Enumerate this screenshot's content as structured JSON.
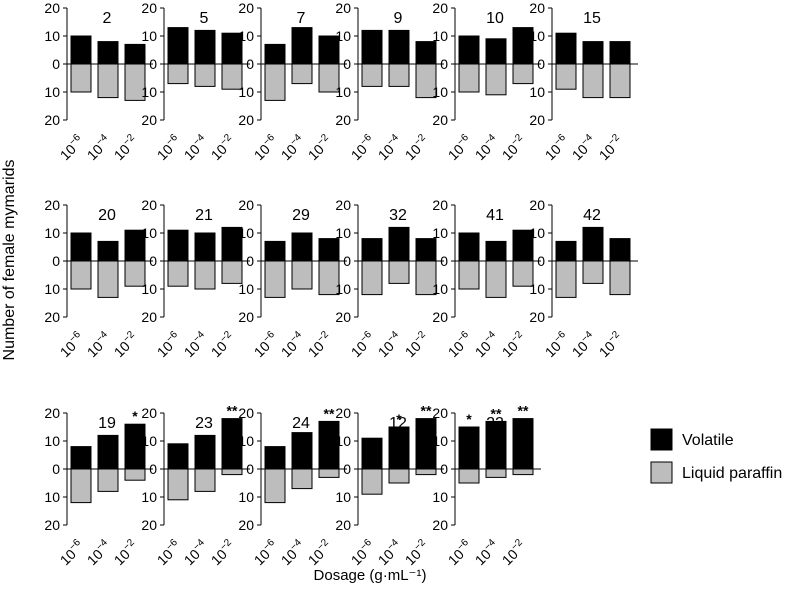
{
  "chart_data": {
    "type": "bar",
    "ylabel": "Number of female mymarids",
    "xlabel": "Dosage (g·mL⁻¹)",
    "ylim": [
      -20,
      20
    ],
    "yticks": [
      "20",
      "10",
      "0",
      "10",
      "20"
    ],
    "categories": [
      {
        "base": "10",
        "exp": "−6"
      },
      {
        "base": "10",
        "exp": "−4"
      },
      {
        "base": "10",
        "exp": "−2"
      }
    ],
    "legend": {
      "position": "right",
      "items": [
        {
          "label": "Volatile",
          "color": "#000000"
        },
        {
          "label": "Liquid paraffin",
          "color": "#bdbdbe"
        }
      ]
    },
    "panels": [
      {
        "title": "2",
        "volatile": [
          10,
          8,
          7
        ],
        "paraffin": [
          10,
          12,
          13
        ],
        "sig": [
          "",
          "",
          ""
        ]
      },
      {
        "title": "5",
        "volatile": [
          13,
          12,
          11
        ],
        "paraffin": [
          7,
          8,
          9
        ],
        "sig": [
          "",
          "",
          ""
        ]
      },
      {
        "title": "7",
        "volatile": [
          7,
          13,
          10
        ],
        "paraffin": [
          13,
          7,
          10
        ],
        "sig": [
          "",
          "",
          ""
        ]
      },
      {
        "title": "9",
        "volatile": [
          12,
          12,
          8
        ],
        "paraffin": [
          8,
          8,
          12
        ],
        "sig": [
          "",
          "",
          ""
        ]
      },
      {
        "title": "10",
        "volatile": [
          10,
          9,
          13
        ],
        "paraffin": [
          10,
          11,
          7
        ],
        "sig": [
          "",
          "",
          ""
        ]
      },
      {
        "title": "15",
        "volatile": [
          11,
          8,
          8
        ],
        "paraffin": [
          9,
          12,
          12
        ],
        "sig": [
          "",
          "",
          ""
        ]
      },
      {
        "title": "20",
        "volatile": [
          10,
          7,
          11
        ],
        "paraffin": [
          10,
          13,
          9
        ],
        "sig": [
          "",
          "",
          ""
        ]
      },
      {
        "title": "21",
        "volatile": [
          11,
          10,
          12
        ],
        "paraffin": [
          9,
          10,
          8
        ],
        "sig": [
          "",
          "",
          ""
        ]
      },
      {
        "title": "29",
        "volatile": [
          7,
          10,
          8
        ],
        "paraffin": [
          13,
          10,
          12
        ],
        "sig": [
          "",
          "",
          ""
        ]
      },
      {
        "title": "32",
        "volatile": [
          8,
          12,
          8
        ],
        "paraffin": [
          12,
          8,
          12
        ],
        "sig": [
          "",
          "",
          ""
        ]
      },
      {
        "title": "41",
        "volatile": [
          10,
          7,
          11
        ],
        "paraffin": [
          10,
          13,
          9
        ],
        "sig": [
          "",
          "",
          ""
        ]
      },
      {
        "title": "42",
        "volatile": [
          7,
          12,
          8
        ],
        "paraffin": [
          13,
          8,
          12
        ],
        "sig": [
          "",
          "",
          ""
        ]
      },
      {
        "title": "19",
        "volatile": [
          8,
          12,
          16
        ],
        "paraffin": [
          12,
          8,
          4
        ],
        "sig": [
          "",
          "",
          "*"
        ]
      },
      {
        "title": "23",
        "volatile": [
          9,
          12,
          18
        ],
        "paraffin": [
          11,
          8,
          2
        ],
        "sig": [
          "",
          "",
          "**"
        ]
      },
      {
        "title": "24",
        "volatile": [
          8,
          13,
          17
        ],
        "paraffin": [
          12,
          7,
          3
        ],
        "sig": [
          "",
          "",
          "**"
        ]
      },
      {
        "title": "12",
        "volatile": [
          11,
          15,
          18
        ],
        "paraffin": [
          9,
          5,
          2
        ],
        "sig": [
          "",
          "*",
          "**"
        ]
      },
      {
        "title": "22",
        "volatile": [
          15,
          17,
          18
        ],
        "paraffin": [
          5,
          3,
          2
        ],
        "sig": [
          "*",
          "**",
          "**"
        ]
      }
    ]
  }
}
